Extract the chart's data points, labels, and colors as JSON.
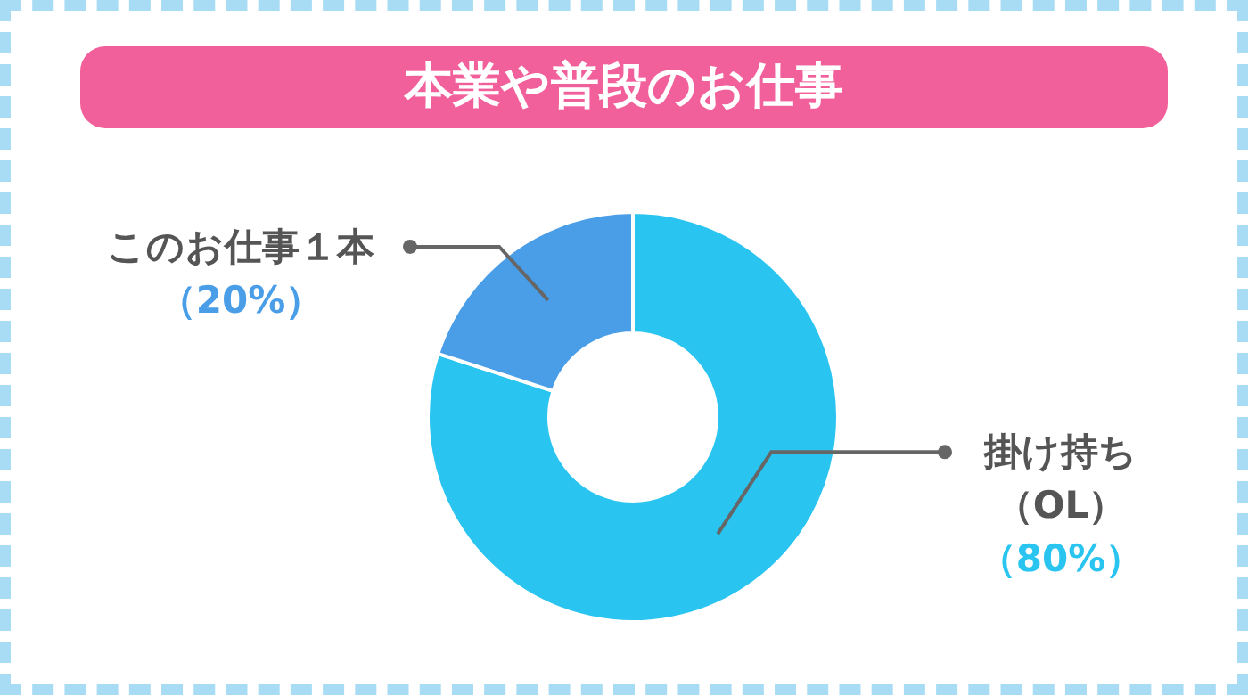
{
  "chart_data": {
    "type": "donut",
    "title": "本業や普段のお仕事",
    "categories": [
      "掛け持ち（OL）",
      "このお仕事１本"
    ],
    "values": [
      80,
      20
    ],
    "colors": [
      "#29c4f0",
      "#4a9ee8"
    ],
    "value_labels": [
      "（80%）",
      "（20%）"
    ]
  }
}
